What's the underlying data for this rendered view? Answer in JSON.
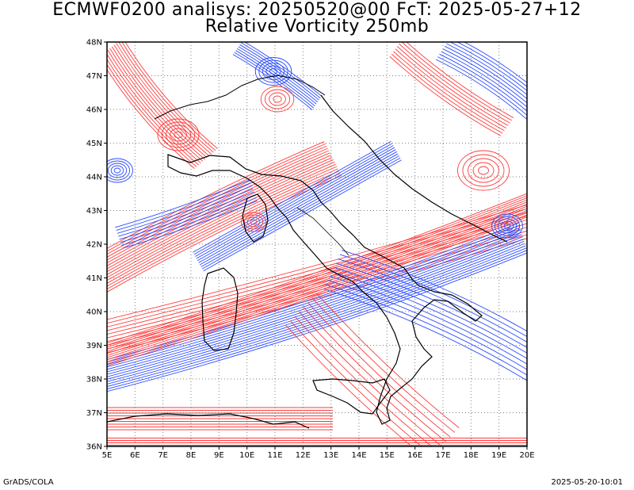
{
  "header": {
    "title_line1": "ECMWF0200 analisys: 20250520@00 FcT: 2025-05-27+12",
    "title_line2": "Relative Vorticity 250mb"
  },
  "map": {
    "lat_labels": [
      "48N",
      "47N",
      "46N",
      "45N",
      "44N",
      "43N",
      "42N",
      "41N",
      "40N",
      "39N",
      "38N",
      "37N",
      "36N"
    ],
    "lon_labels": [
      "5E",
      "6E",
      "7E",
      "8E",
      "9E",
      "10E",
      "11E",
      "12E",
      "13E",
      "14E",
      "15E",
      "16E",
      "17E",
      "18E",
      "19E",
      "20E"
    ],
    "colors": {
      "positive": "#ff3b3b",
      "negative": "#2b4bff",
      "coast": "#000000",
      "grid": "#7f7f7f"
    }
  },
  "footer": {
    "left": "GrADS/COLA",
    "right": "2025-05-20-10:01"
  }
}
